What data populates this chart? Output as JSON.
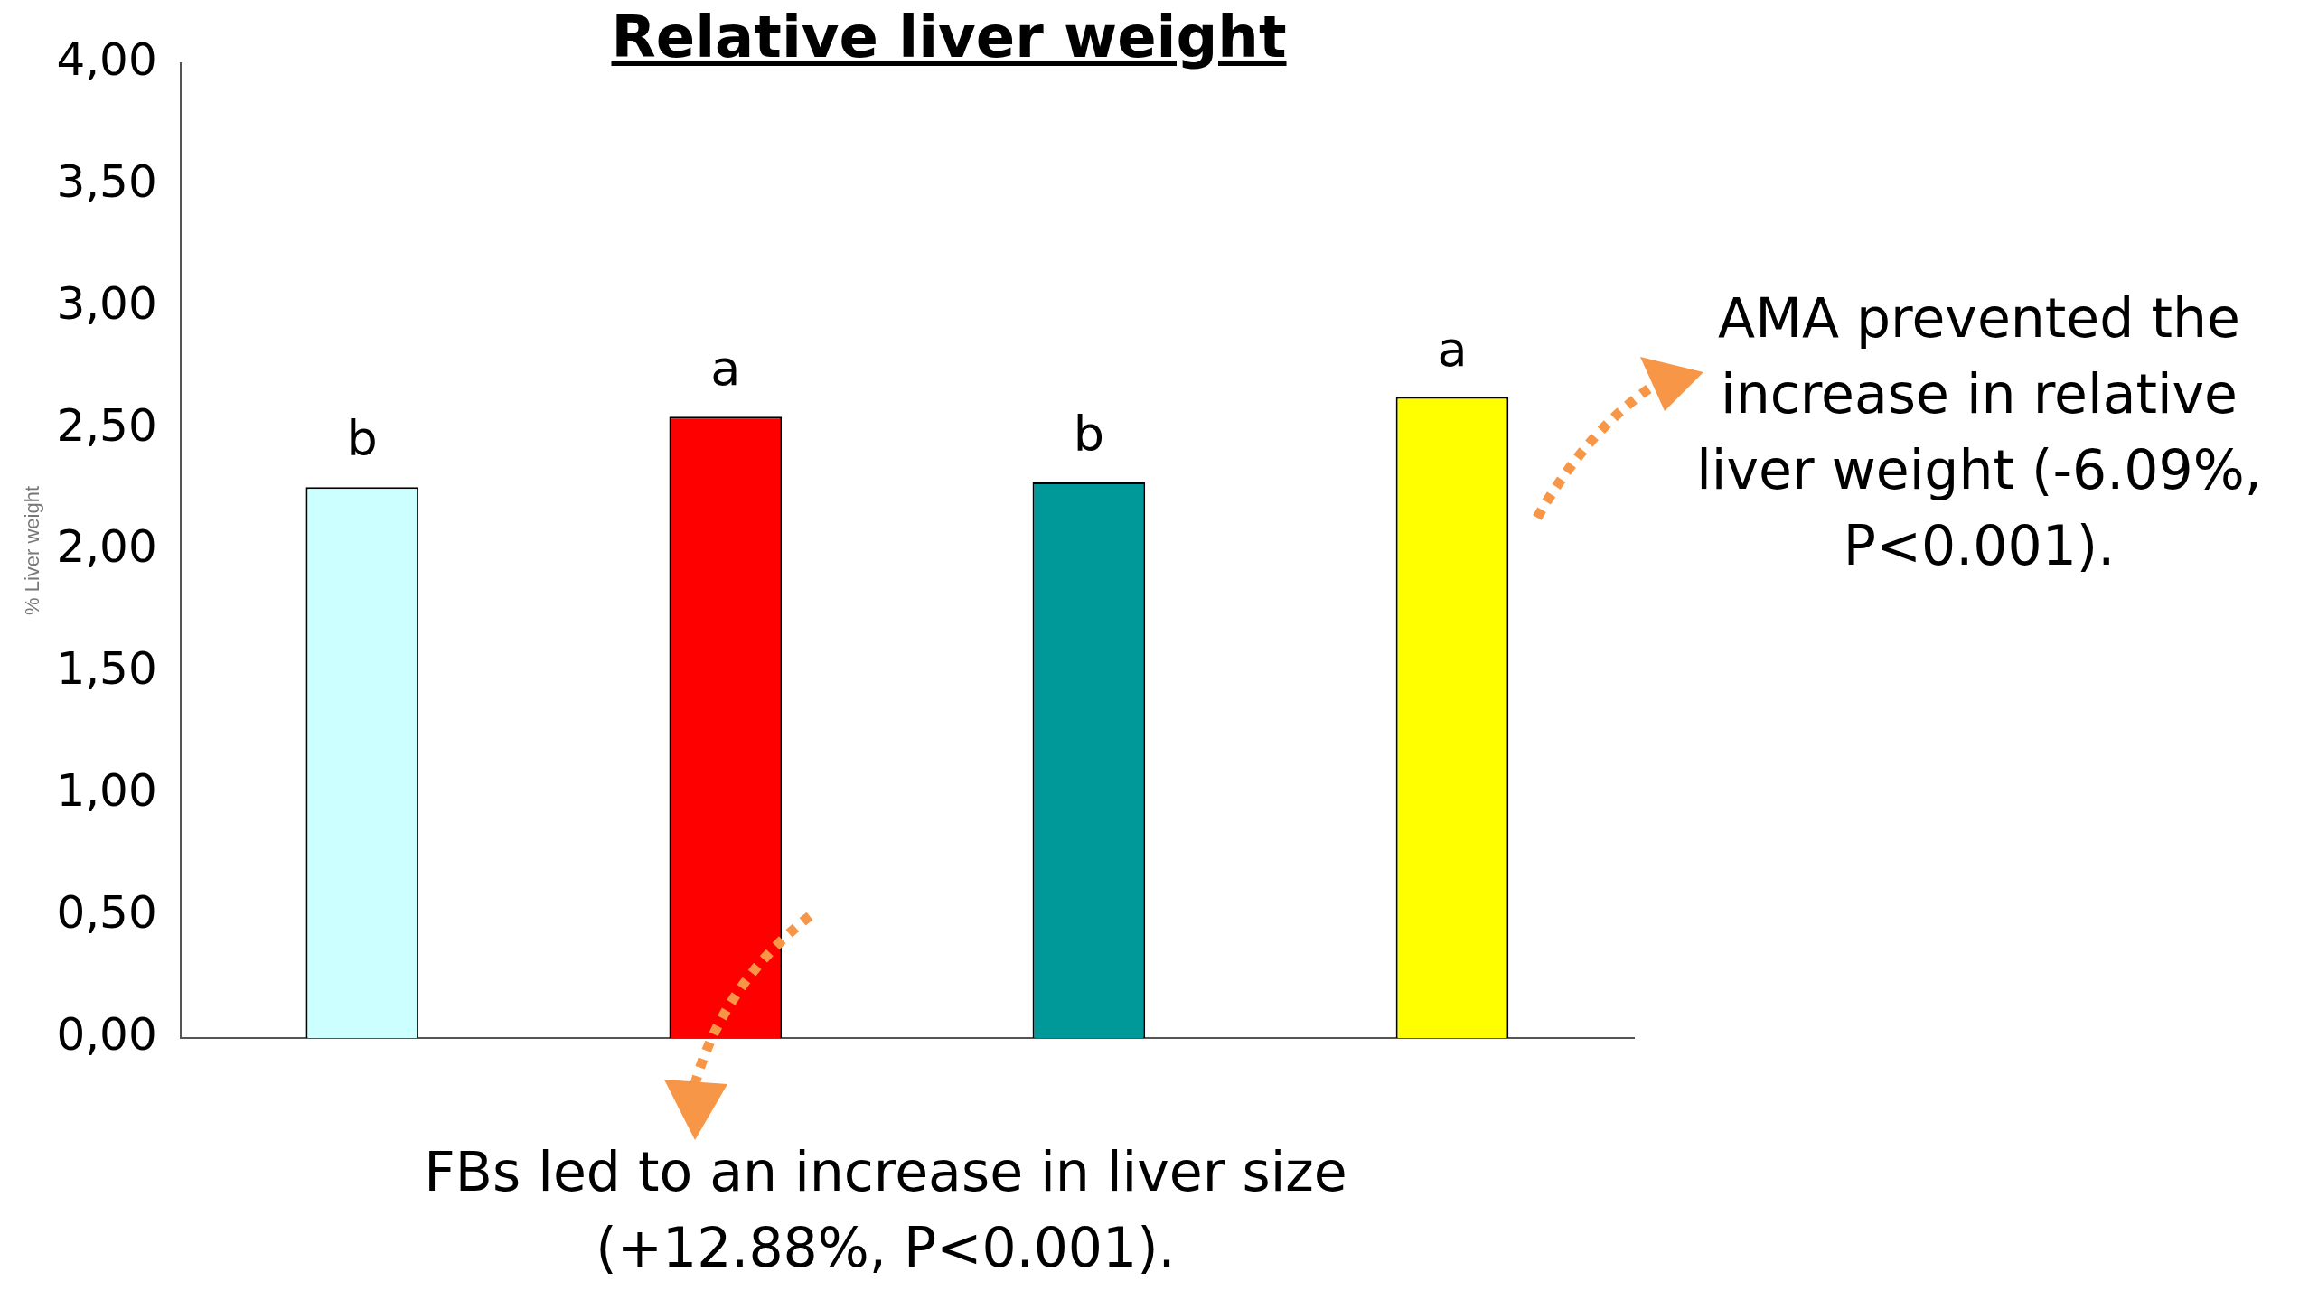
{
  "chart_data": {
    "type": "bar",
    "title": "Relative liver weight",
    "ylabel": "% Liver weight",
    "categories": [
      null,
      null,
      null,
      null
    ],
    "values": [
      2.26,
      2.55,
      2.28,
      2.63
    ],
    "colors": [
      "#ccffff",
      "#ff0000",
      "#009999",
      "#ffff00"
    ],
    "value_labels": [
      "b",
      "a",
      "b",
      "a"
    ],
    "ylim": [
      0,
      4
    ],
    "yticks": [
      {
        "value": 0,
        "label": "0,00"
      },
      {
        "value": 0.5,
        "label": "0,50"
      },
      {
        "value": 1,
        "label": "1,00"
      },
      {
        "value": 1.5,
        "label": "1,50"
      },
      {
        "value": 2,
        "label": "2,00"
      },
      {
        "value": 2.5,
        "label": "2,50"
      },
      {
        "value": 3,
        "label": "3,00"
      },
      {
        "value": 3.5,
        "label": "3,50"
      },
      {
        "value": 4,
        "label": "4,00"
      }
    ],
    "grid": false,
    "legend": false,
    "annotations": [
      "AMA prevented the increase in relative liver weight (-6.09%, P<0.001).",
      "FBs led to an increase in liver size (+12.88%, P<0.001)."
    ]
  }
}
